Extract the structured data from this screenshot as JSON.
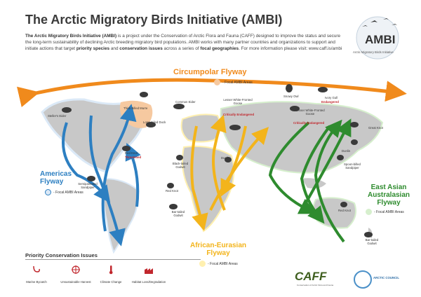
{
  "header": {
    "title": "The Arctic Migratory Birds Initiative (AMBI)",
    "intro_bold1": "The Arctic Migratory Birds Initiative (AMBI)",
    "intro_text1": " is a project under the Conservation of Arctic Flora and Fauna (CAFF) designed to improve the status and secure the long-term sustainability of declining Arctic breeding migratory bird populations. AMBI works with many partner countries and organizations to support and initiate actions that target ",
    "intro_bold2": "priority species",
    "intro_text2": " and ",
    "intro_bold3": "conservation issues",
    "intro_text3": " across a series of ",
    "intro_bold4": "focal geographies",
    "intro_text4": ". For more information please visit: ",
    "intro_link": "www.caff.is/ambi"
  },
  "logo": {
    "name": "AMBI",
    "subtitle": "Arctic Migratory Birds Initiative"
  },
  "flyways": {
    "circumpolar": {
      "name": "Circumpolar Flyway",
      "legend": "- Focal AMBI Areas",
      "color": "#f08a1c"
    },
    "americas": {
      "name_line1": "Americas",
      "name_line2": "Flyway",
      "legend": "- Focal AMBI Areas",
      "color": "#2d7fc1"
    },
    "african_eurasian": {
      "name_line1": "African-Eurasian",
      "name_line2": "Flyway",
      "legend": "- Focal AMBI Areas",
      "color": "#f3b41b"
    },
    "east_asian": {
      "name_line1": "East Asian",
      "name_line2": "Australasian",
      "name_line3": "Flyway",
      "legend": "- Focal AMBI Areas",
      "color": "#2e8b2e"
    }
  },
  "birds": {
    "thick_billed_murre": "Thick Billed Murre",
    "common_eider": "Common Eider",
    "lesser_white_fronted_goose_w": "Lesser White-Fronted Goose",
    "lesser_white_fronted_goose_e": "Lesser White-Fronted Goose",
    "snowy_owl": "Snowy Owl",
    "ivory_gull": "Ivory Gull",
    "stellers_eider": "Steller's Eider",
    "long_tailed_duck": "Long-tailed Duck",
    "great_knot": "Great Knot",
    "dunlin_w": "Dunlin",
    "dunlin_e": "Dunlin",
    "red_knot_am": "Red Knot",
    "semipalmated_sandpiper": "Semipalmated Sandpiper",
    "black_tailed_godwit": "Black-tailed Godwit",
    "red_knot_af": "Red Knot",
    "spoon_billed_sandpiper": "Spoon-billed Sandpiper",
    "red_knot_ea": "Red Knot",
    "bar_tailed_godwit_w": "Bar-tailed Godwit",
    "bar_tailed_godwit_e": "Bar-tailed Godwit"
  },
  "statuses": {
    "critically_endangered_w": "Critically Endangered",
    "critically_endangered_e": "Critically Endangered",
    "endangered": "Endangered",
    "threatened": "Threatened"
  },
  "priority": {
    "title": "Priority Conservation Issues",
    "issues": [
      "Marine Bycatch",
      "Unsustainable Harvest",
      "Climate Change",
      "Habitat Loss/Degradation"
    ]
  },
  "footer": {
    "caff": "CAFF",
    "caff_sub": "Conservation of Arctic Flora and Fauna",
    "arctic_council": "ARCTIC COUNCIL"
  },
  "colors": {
    "land": "#c8c8c8",
    "focal_americas": "#dbe9f7",
    "focal_circumpolar": "#f6c9a0",
    "focal_african": "#fff0b0",
    "focal_east_asian": "#d6efcd"
  }
}
